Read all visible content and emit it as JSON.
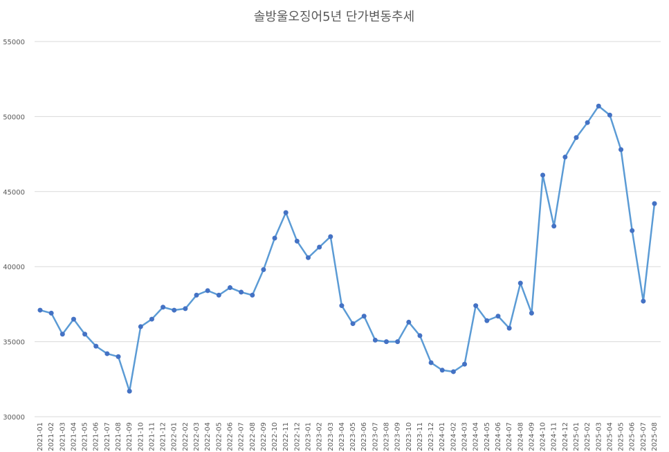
{
  "chart_data": {
    "type": "line",
    "title": "솔방울오징어5년 단가변동추세",
    "categories": [
      "2021-01",
      "2021-02",
      "2021-03",
      "2021-04",
      "2021-05",
      "2021-06",
      "2021-07",
      "2021-08",
      "2021-09",
      "2021-10",
      "2021-11",
      "2021-12",
      "2022-01",
      "2022-02",
      "2022-03",
      "2022-04",
      "2022-05",
      "2022-06",
      "2022-07",
      "2022-08",
      "2022-09",
      "2022-10",
      "2022-11",
      "2022-12",
      "2023-01",
      "2023-02",
      "2023-03",
      "2023-04",
      "2023-05",
      "2023-06",
      "2023-07",
      "2023-08",
      "2023-09",
      "2023-10",
      "2023-11",
      "2023-12",
      "2024-01",
      "2024-02",
      "2024-03",
      "2024-04",
      "2024-05",
      "2024-06",
      "2024-07",
      "2024-08",
      "2024-09",
      "2024-10",
      "2024-11",
      "2024-12",
      "2025-01",
      "2025-02",
      "2025-03",
      "2025-04",
      "2025-05",
      "2025-06",
      "2025-07",
      "2025-08"
    ],
    "values": [
      37100,
      36900,
      35500,
      36500,
      35500,
      34700,
      34200,
      34000,
      31700,
      36000,
      36500,
      37300,
      37100,
      37200,
      38100,
      38400,
      38100,
      38600,
      38300,
      38100,
      39800,
      41900,
      43600,
      41700,
      40600,
      41300,
      42000,
      37400,
      36200,
      36700,
      35100,
      35000,
      35000,
      36300,
      35400,
      33600,
      33100,
      33000,
      33500,
      37400,
      36400,
      36700,
      35900,
      38900,
      36900,
      46100,
      42700,
      47300,
      48600,
      49600,
      50700,
      50100,
      47800,
      42400,
      37700,
      44200
    ],
    "color": "#5b9bd5",
    "marker_color": "#4472c4",
    "ylim": [
      30000,
      55000
    ],
    "yticks": [
      30000,
      35000,
      40000,
      45000,
      50000,
      55000
    ],
    "grid": true
  }
}
